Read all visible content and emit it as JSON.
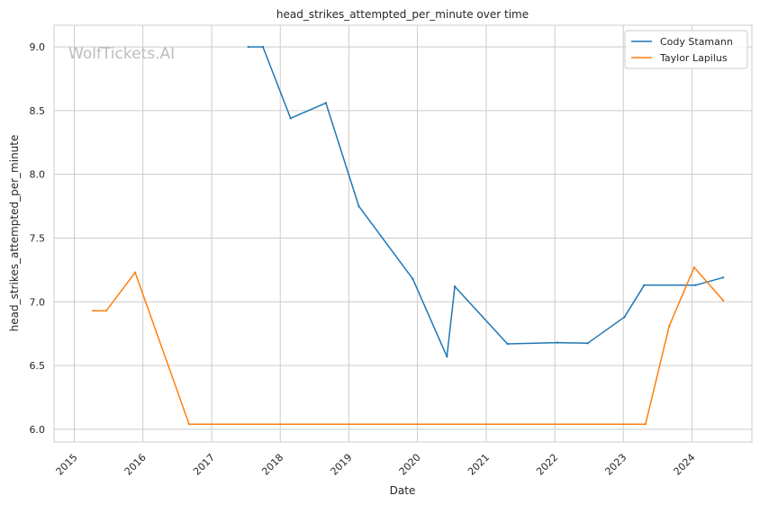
{
  "chart_data": {
    "type": "line",
    "title": "head_strikes_attempted_per_minute over time",
    "xlabel": "Date",
    "ylabel": "head_strikes_attempted_per_minute",
    "watermark": "WolfTickets.AI",
    "xlim": [
      "2014-09-15",
      "2024-11-15"
    ],
    "ylim": [
      5.9,
      9.17
    ],
    "x_ticks": [
      "2015",
      "2016",
      "2017",
      "2018",
      "2019",
      "2020",
      "2021",
      "2022",
      "2023",
      "2024"
    ],
    "y_ticks": [
      "6.0",
      "6.5",
      "7.0",
      "7.5",
      "8.0",
      "8.5",
      "9.0"
    ],
    "grid": true,
    "legend_position": "top-right",
    "series": [
      {
        "name": "Cody Stamann",
        "color": "#1f77b4",
        "points": [
          [
            "2017-07-15",
            9.0
          ],
          [
            "2017-10-01",
            9.0
          ],
          [
            "2018-02-25",
            8.44
          ],
          [
            "2018-09-01",
            8.56
          ],
          [
            "2019-02-23",
            7.75
          ],
          [
            "2019-12-07",
            7.18
          ],
          [
            "2020-06-06",
            6.57
          ],
          [
            "2020-07-18",
            7.12
          ],
          [
            "2021-04-24",
            6.67
          ],
          [
            "2022-01-15",
            6.68
          ],
          [
            "2022-06-25",
            6.675
          ],
          [
            "2023-01-07",
            6.88
          ],
          [
            "2023-04-22",
            7.13
          ],
          [
            "2024-01-20",
            7.13
          ],
          [
            "2024-06-15",
            7.19
          ]
        ]
      },
      {
        "name": "Taylor Lapilus",
        "color": "#ff7f0e",
        "points": [
          [
            "2015-04-11",
            6.93
          ],
          [
            "2015-06-20",
            6.93
          ],
          [
            "2015-11-21",
            7.23
          ],
          [
            "2016-09-03",
            6.04
          ],
          [
            "2023-04-29",
            6.04
          ],
          [
            "2023-09-02",
            6.81
          ],
          [
            "2024-01-13",
            7.27
          ],
          [
            "2024-06-15",
            7.01
          ]
        ]
      }
    ]
  }
}
